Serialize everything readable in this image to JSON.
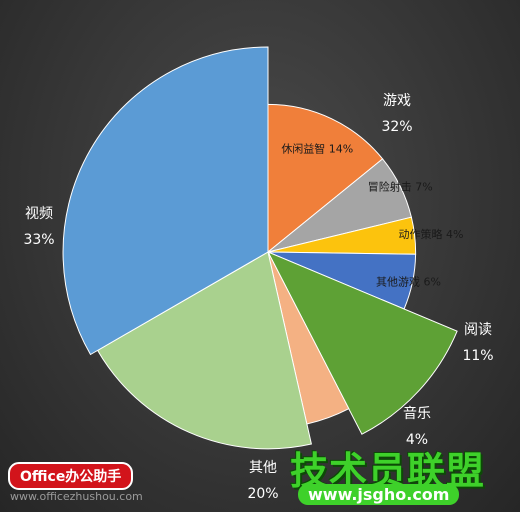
{
  "chart_data": {
    "type": "pie",
    "title": "",
    "series": [
      {
        "name": "休闲益智",
        "value": 14,
        "label": "休闲益智 14%",
        "color": "#f07f3a",
        "group": "游戏"
      },
      {
        "name": "冒险射击",
        "value": 7,
        "label": "冒险射击 7%",
        "color": "#a5a5a5",
        "group": "游戏"
      },
      {
        "name": "动作策略",
        "value": 4,
        "label": "动作策略 4%",
        "color": "#fcc30d",
        "group": "游戏"
      },
      {
        "name": "其他游戏",
        "value": 6,
        "label": "其他游戏 6%",
        "color": "#4472c4",
        "group": "游戏"
      },
      {
        "name": "阅读",
        "value": 11,
        "label_name": "阅读",
        "label_pct": "11%",
        "color": "#5ea135"
      },
      {
        "name": "音乐",
        "value": 4,
        "label_name": "音乐",
        "label_pct": "4%",
        "color": "#f4b183"
      },
      {
        "name": "其他",
        "value": 20,
        "label_name": "其他",
        "label_pct": "20%",
        "color": "#a9d18e"
      },
      {
        "name": "视频",
        "value": 33,
        "label_name": "视频",
        "label_pct": "33%",
        "color": "#5b9bd5"
      }
    ],
    "group_label": {
      "name": "游戏",
      "pct": "32%"
    }
  },
  "watermarks": {
    "left_badge": "Office办公助手",
    "left_url": "www.officezhushou.com",
    "right_brand": "技术员联盟",
    "right_url": "www.jsgho.com"
  }
}
